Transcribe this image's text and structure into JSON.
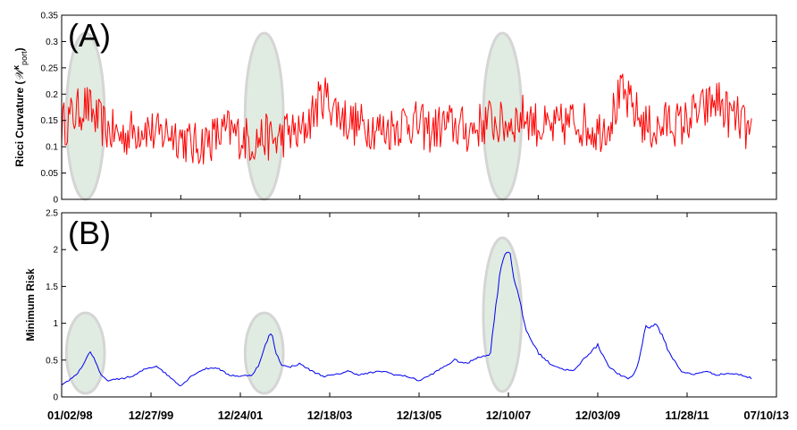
{
  "chart_data": [
    {
      "type": "line",
      "panel_label": "(A)",
      "ylabel": "Ricci Curvature (",
      "ylabel_sym": "𝒲",
      "ylabel_sup": "κ",
      "ylabel_sub": "port",
      "ylabel_end": ")",
      "ylim": [
        0,
        0.35
      ],
      "yticks": [
        "0",
        "0.05",
        "0.1",
        "0.15",
        "0.2",
        "0.25",
        "0.3",
        "0.35"
      ],
      "xlim": [
        0,
        3000
      ],
      "series": [
        {
          "color": "#ff0000",
          "x": [
            0,
            50,
            100,
            150,
            200,
            250,
            300,
            350,
            400,
            450,
            500,
            550,
            600,
            650,
            700,
            750,
            800,
            850,
            900,
            950,
            1000,
            1050,
            1100,
            1150,
            1200,
            1250,
            1300,
            1350,
            1400,
            1450,
            1500,
            1550,
            1600,
            1650,
            1700,
            1750,
            1800,
            1850,
            1900,
            1950,
            2000,
            2050,
            2100,
            2150,
            2200,
            2250,
            2300,
            2350,
            2400,
            2450,
            2500,
            2550,
            2600,
            2650,
            2700,
            2750,
            2800,
            2850,
            2900
          ],
          "values": [
            0.14,
            0.16,
            0.18,
            0.15,
            0.13,
            0.12,
            0.13,
            0.14,
            0.12,
            0.13,
            0.12,
            0.1,
            0.11,
            0.12,
            0.13,
            0.12,
            0.11,
            0.12,
            0.11,
            0.13,
            0.12,
            0.16,
            0.2,
            0.17,
            0.15,
            0.14,
            0.14,
            0.13,
            0.14,
            0.15,
            0.14,
            0.13,
            0.14,
            0.14,
            0.13,
            0.14,
            0.15,
            0.14,
            0.15,
            0.16,
            0.14,
            0.13,
            0.14,
            0.15,
            0.14,
            0.13,
            0.15,
            0.2,
            0.17,
            0.14,
            0.13,
            0.15,
            0.14,
            0.16,
            0.17,
            0.19,
            0.16,
            0.15,
            0.11
          ]
        }
      ],
      "highlights": [
        [
          0,
          200
        ],
        [
          750,
          950
        ],
        [
          1750,
          1950
        ]
      ]
    },
    {
      "type": "line",
      "panel_label": "(B)",
      "ylabel": "Minimum Risk",
      "ylim": [
        0,
        2.5
      ],
      "yticks": [
        "0",
        "0.5",
        "1",
        "1.5",
        "2",
        "2.5"
      ],
      "xlim": [
        0,
        3000
      ],
      "xtick_labels": [
        "01/02/98",
        "12/27/99",
        "12/24/01",
        "12/18/03",
        "12/13/05",
        "12/10/07",
        "12/03/09",
        "11/28/11",
        "07/10/13"
      ],
      "series": [
        {
          "color": "#0000ee",
          "x": [
            0,
            20,
            40,
            60,
            80,
            100,
            120,
            140,
            160,
            180,
            200,
            250,
            300,
            350,
            400,
            450,
            500,
            550,
            600,
            650,
            700,
            750,
            800,
            830,
            860,
            880,
            900,
            920,
            950,
            1000,
            1050,
            1100,
            1150,
            1200,
            1250,
            1300,
            1350,
            1400,
            1450,
            1500,
            1550,
            1600,
            1650,
            1700,
            1750,
            1780,
            1800,
            1820,
            1850,
            1880,
            1900,
            1950,
            2000,
            2050,
            2100,
            2150,
            2200,
            2250,
            2300,
            2350,
            2380,
            2400,
            2420,
            2450,
            2500,
            2550,
            2600,
            2650,
            2700,
            2750,
            2800,
            2850,
            2900
          ],
          "values": [
            0.15,
            0.2,
            0.25,
            0.3,
            0.38,
            0.5,
            0.62,
            0.5,
            0.32,
            0.25,
            0.22,
            0.25,
            0.28,
            0.38,
            0.42,
            0.28,
            0.15,
            0.3,
            0.38,
            0.4,
            0.3,
            0.28,
            0.3,
            0.45,
            0.75,
            0.88,
            0.6,
            0.45,
            0.4,
            0.45,
            0.35,
            0.28,
            0.3,
            0.35,
            0.3,
            0.33,
            0.35,
            0.3,
            0.28,
            0.22,
            0.3,
            0.4,
            0.5,
            0.45,
            0.55,
            0.55,
            0.6,
            1.2,
            1.9,
            2.0,
            1.6,
            0.9,
            0.6,
            0.45,
            0.38,
            0.35,
            0.55,
            0.7,
            0.4,
            0.28,
            0.25,
            0.3,
            0.45,
            0.95,
            0.98,
            0.6,
            0.35,
            0.3,
            0.35,
            0.3,
            0.32,
            0.3,
            0.25
          ]
        }
      ],
      "highlights": [
        [
          0,
          200
        ],
        [
          750,
          950
        ],
        [
          1750,
          1950
        ]
      ]
    }
  ]
}
